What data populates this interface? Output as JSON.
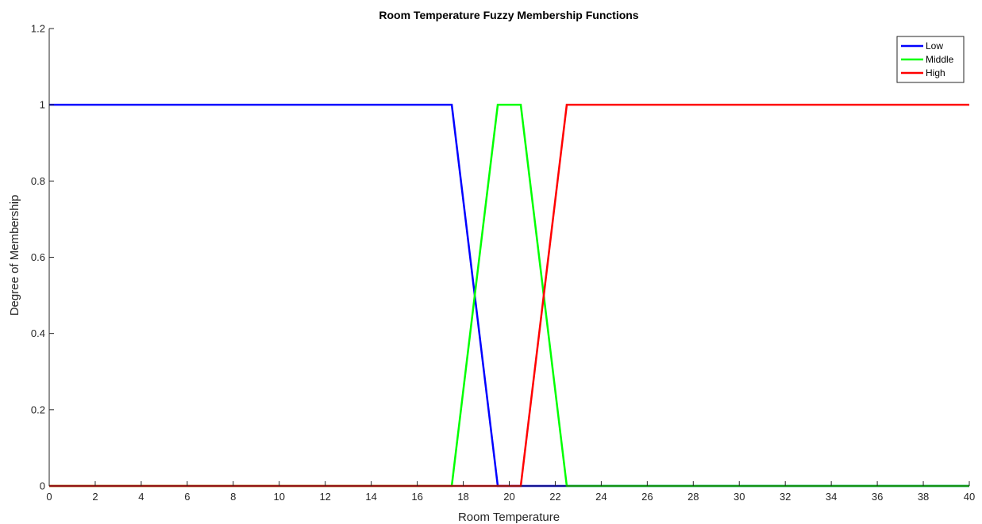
{
  "chart_data": {
    "type": "line",
    "title": "Room Temperature Fuzzy Membership Functions",
    "xlabel": "Room Temperature",
    "ylabel": "Degree of Membership",
    "xlim": [
      0,
      40
    ],
    "ylim": [
      0,
      1.2
    ],
    "xticks": [
      0,
      2,
      4,
      6,
      8,
      10,
      12,
      14,
      16,
      18,
      20,
      22,
      24,
      26,
      28,
      30,
      32,
      34,
      36,
      38,
      40
    ],
    "yticks": [
      0,
      0.2,
      0.4,
      0.6,
      0.8,
      1,
      1.2
    ],
    "xtick_labels": [
      "0",
      "2",
      "4",
      "6",
      "8",
      "10",
      "12",
      "14",
      "16",
      "18",
      "20",
      "22",
      "24",
      "26",
      "28",
      "30",
      "32",
      "34",
      "36",
      "38",
      "40"
    ],
    "ytick_labels": [
      "0",
      "0.2",
      "0.4",
      "0.6",
      "0.8",
      "1",
      "1.2"
    ],
    "grid": false,
    "legend_position": "top-right",
    "series": [
      {
        "name": "Low",
        "color": "#0000ff",
        "x": [
          0,
          17.5,
          19.5,
          40
        ],
        "y": [
          1,
          1,
          0,
          0
        ]
      },
      {
        "name": "Middle",
        "color": "#00ff00",
        "x": [
          0,
          17.5,
          19.5,
          20.5,
          22.5,
          40
        ],
        "y": [
          0,
          0,
          1,
          1,
          0,
          0
        ]
      },
      {
        "name": "High",
        "color": "#ff0000",
        "x": [
          0,
          20.5,
          22.5,
          40
        ],
        "y": [
          0,
          0,
          1,
          1
        ]
      }
    ]
  }
}
